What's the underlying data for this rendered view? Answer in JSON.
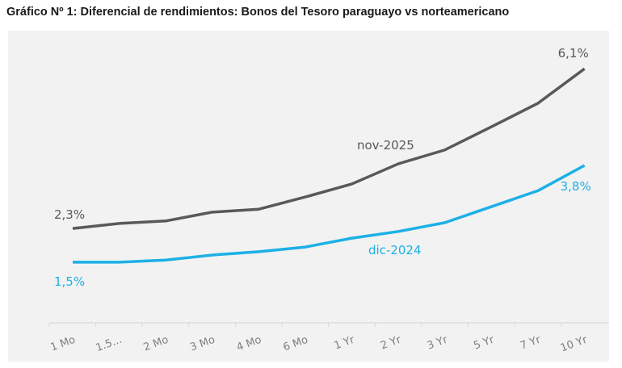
{
  "chart_data": {
    "type": "line",
    "title": "Gráfico Nº 1: Diferencial de rendimientos: Bonos del Tesoro paraguayo vs norteamericano",
    "categories": [
      "1 Mo",
      "1.5...",
      "2 Mo",
      "3 Mo",
      "4 Mo",
      "6 Mo",
      "1 Yr",
      "2 Yr",
      "3 Yr",
      "5 Yr",
      "7 Yr",
      "10 Yr"
    ],
    "ylim": [
      0,
      6.5
    ],
    "grid": false,
    "series": [
      {
        "name": "nov-2025",
        "color": "#595959",
        "values": [
          2.3,
          2.42,
          2.48,
          2.69,
          2.76,
          3.05,
          3.36,
          3.84,
          4.17,
          4.72,
          5.28,
          6.1
        ],
        "labels": {
          "first": "2,3%",
          "last": "6,1%"
        }
      },
      {
        "name": "dic-2024",
        "color": "#1cb0e6",
        "values": [
          1.5,
          1.5,
          1.55,
          1.67,
          1.75,
          1.86,
          2.07,
          2.23,
          2.44,
          2.82,
          3.2,
          3.8
        ],
        "labels": {
          "first": "1,5%",
          "last": "3,8%"
        }
      }
    ]
  }
}
